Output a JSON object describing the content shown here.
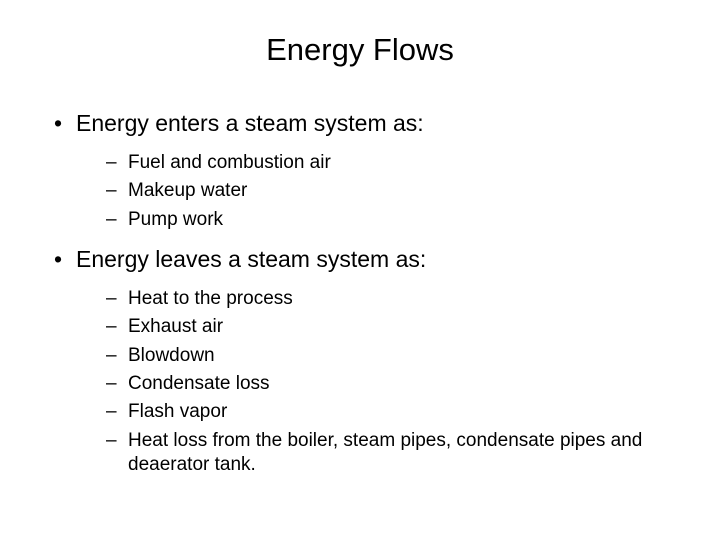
{
  "title": "Energy Flows",
  "bullets": [
    {
      "text": "Energy enters a steam system as:",
      "sub": [
        "Fuel and combustion air",
        "Makeup water",
        "Pump work"
      ]
    },
    {
      "text": "Energy leaves a steam system as:",
      "sub": [
        "Heat to the process",
        "Exhaust air",
        "Blowdown",
        "Condensate loss",
        "Flash vapor",
        "Heat loss from the boiler, steam pipes, condensate pipes and deaerator tank."
      ]
    }
  ],
  "colors": {
    "background": "#ffffff",
    "text": "#000000"
  },
  "typography": {
    "title_fontsize": 31,
    "top_bullet_fontsize": 23,
    "sub_bullet_fontsize": 19,
    "font_family": "Arial"
  }
}
